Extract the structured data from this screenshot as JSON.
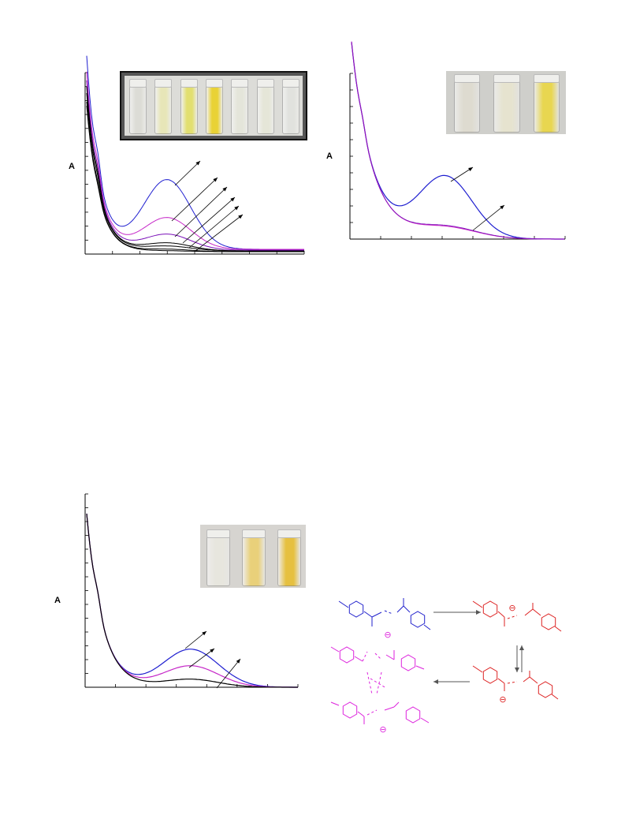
{
  "panels": {
    "a": {
      "ylabel": "A",
      "vial_colors": [
        "#dcdcd6",
        "#e7e6b8",
        "#e2df70",
        "#e9d235",
        "#e4e5da",
        "#e5e6d8",
        "#e1e2de"
      ],
      "curve_colors": [
        "#1f1fd0",
        "#c628c8",
        "#7a10b8",
        "#000000",
        "#000000",
        "#000000",
        "#000000"
      ]
    },
    "b": {
      "ylabel": "A",
      "vial_colors": [
        "#dedbd0",
        "#e6e3cf",
        "#e8d650"
      ],
      "curve_colors": [
        "#1f1fd0",
        "#c628c8",
        "#7a10b8"
      ]
    },
    "c": {
      "ylabel": "A",
      "vial_colors": [
        "#e7e6de",
        "#e9d07a",
        "#e6c040"
      ],
      "curve_colors": [
        "#1f1fd0",
        "#c628c8",
        "#000000"
      ]
    }
  },
  "scheme": {
    "colors": {
      "neutral": "#2222cc",
      "anion": "#dd2222",
      "aggregate": "#dd22dd"
    },
    "charge_symbol": "⊖"
  }
}
